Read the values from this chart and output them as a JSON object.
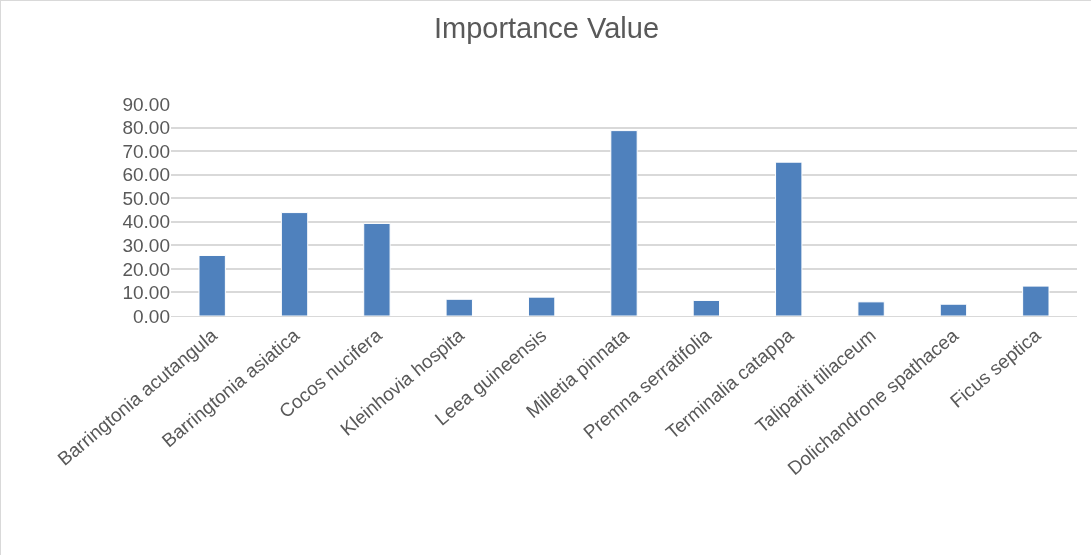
{
  "chart_data": {
    "type": "bar",
    "title": "Importance Value",
    "categories": [
      "Barringtonia acutangula",
      "Barringtonia asiatica",
      "Cocos nucifera",
      "Kleinhovia hospita",
      "Leea guineensis",
      "Milletia pinnata",
      "Premna serratifolia",
      "Terminalia catappa",
      "Talipariti tiliaceum",
      "Dolichandrone spathacea",
      "Ficus septica"
    ],
    "values": [
      25.7,
      43.9,
      39.3,
      7.1,
      8.0,
      78.7,
      6.6,
      65.3,
      6.0,
      5.0,
      12.7
    ],
    "color": "#4f81bd",
    "ylim": [
      0,
      90
    ],
    "yticks": [
      {
        "value": 0,
        "label": "0.00"
      },
      {
        "value": 10,
        "label": "10.00"
      },
      {
        "value": 20,
        "label": "20.00"
      },
      {
        "value": 30,
        "label": "30.00"
      },
      {
        "value": 40,
        "label": "40.00"
      },
      {
        "value": 50,
        "label": "50.00"
      },
      {
        "value": 60,
        "label": "60.00"
      },
      {
        "value": 70,
        "label": "70.00"
      },
      {
        "value": 80,
        "label": "80.00"
      },
      {
        "value": 90,
        "label": "90.00"
      }
    ],
    "grid": "y"
  }
}
